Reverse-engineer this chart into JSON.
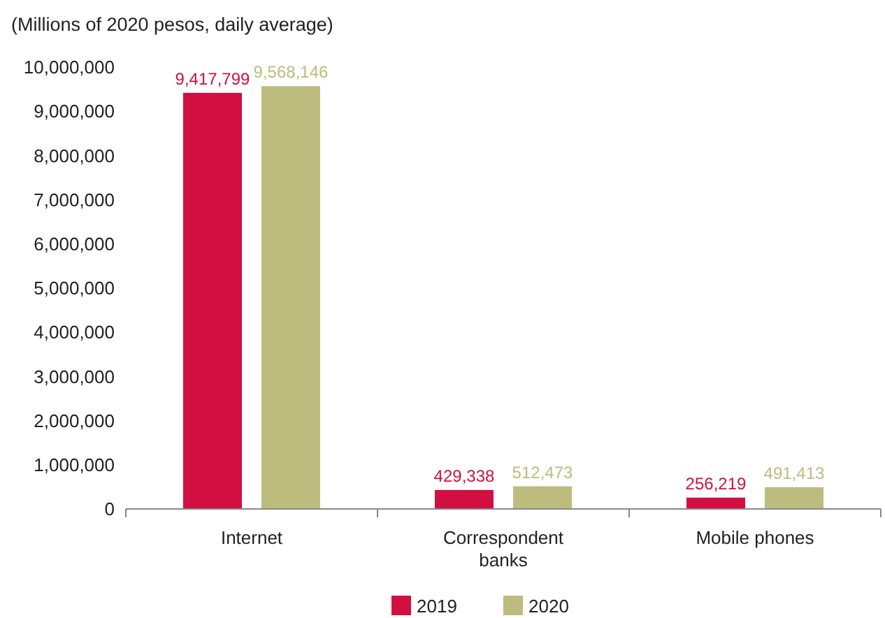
{
  "chart_data": {
    "type": "bar",
    "ylabel": "(Millions of 2020 pesos, daily average)",
    "categories": [
      "Internet",
      "Correspondent banks",
      "Mobile phones"
    ],
    "series": [
      {
        "name": "2019",
        "color": "#d20f41",
        "values": [
          9417799,
          429338,
          256219
        ],
        "value_labels": [
          "9,417,799",
          "429,338",
          "256,219"
        ]
      },
      {
        "name": "2020",
        "color": "#bcbc7e",
        "values": [
          9568146,
          512473,
          491413
        ],
        "value_labels": [
          "9,568,146",
          "512,473",
          "491,413"
        ]
      }
    ],
    "ylim": [
      0,
      10000000
    ],
    "yticks": [
      {
        "value": 0,
        "label": "0"
      },
      {
        "value": 1000000,
        "label": "1,000,000"
      },
      {
        "value": 2000000,
        "label": "2,000,000"
      },
      {
        "value": 3000000,
        "label": "3,000,000"
      },
      {
        "value": 4000000,
        "label": "4,000,000"
      },
      {
        "value": 5000000,
        "label": "5,000,000"
      },
      {
        "value": 6000000,
        "label": "6,000,000"
      },
      {
        "value": 7000000,
        "label": "7,000,000"
      },
      {
        "value": 8000000,
        "label": "8,000,000"
      },
      {
        "value": 9000000,
        "label": "9,000,000"
      },
      {
        "value": 10000000,
        "label": "10,000,000"
      }
    ],
    "grid": false,
    "legend": "bottom"
  }
}
